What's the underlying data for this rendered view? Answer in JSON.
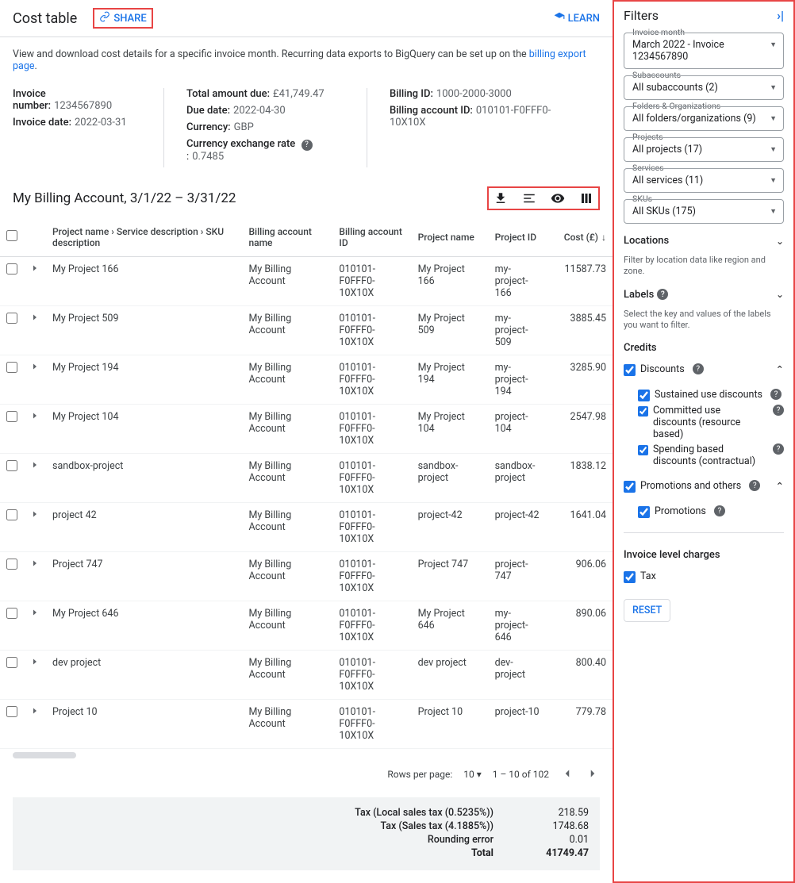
{
  "header": {
    "title": "Cost table",
    "share_label": "SHARE",
    "learn_label": "LEARN"
  },
  "description": {
    "text": "View and download cost details for a specific invoice month. Recurring data exports to BigQuery can be set up on the ",
    "link_text": "billing export page",
    "suffix": "."
  },
  "info": {
    "col1": [
      {
        "label": "Invoice number:",
        "value": "1234567890"
      },
      {
        "label": "Invoice date:",
        "value": "2022-03-31"
      }
    ],
    "col2": [
      {
        "label": "Total amount due:",
        "value": "£41,749.47"
      },
      {
        "label": "Due date:",
        "value": "2022-04-30"
      },
      {
        "label": "Currency:",
        "value": "GBP"
      },
      {
        "label": "Currency exchange rate",
        "value": "0.7485",
        "help": true
      }
    ],
    "col3": [
      {
        "label": "Billing ID:",
        "value": "1000-2000-3000"
      },
      {
        "label": "Billing account ID:",
        "value": "010101-F0FFF0-10X10X"
      }
    ]
  },
  "subtitle": "My Billing Account, 3/1/22 – 3/31/22",
  "columns": {
    "project_desc": "Project name › Service description › SKU description",
    "billing_acct_name": "Billing account name",
    "billing_acct_id": "Billing account ID",
    "project_name": "Project name",
    "project_id": "Project ID",
    "cost": "Cost (£)"
  },
  "rows": [
    {
      "name": "My Project 166",
      "acct": "My Billing Account",
      "acctid": "010101-F0FFF0-10X10X",
      "pname": "My Project 166",
      "pid": "my-project-166",
      "cost": "11587.73"
    },
    {
      "name": "My Project 509",
      "acct": "My Billing Account",
      "acctid": "010101-F0FFF0-10X10X",
      "pname": "My Project 509",
      "pid": "my-project-509",
      "cost": "3885.45"
    },
    {
      "name": "My Project 194",
      "acct": "My Billing Account",
      "acctid": "010101-F0FFF0-10X10X",
      "pname": "My Project 194",
      "pid": "my-project-194",
      "cost": "3285.90"
    },
    {
      "name": "My Project 104",
      "acct": "My Billing Account",
      "acctid": "010101-F0FFF0-10X10X",
      "pname": "My Project 104",
      "pid": "project-104",
      "cost": "2547.98"
    },
    {
      "name": "sandbox-project",
      "acct": "My Billing Account",
      "acctid": "010101-F0FFF0-10X10X",
      "pname": "sandbox-project",
      "pid": "sandbox-project",
      "cost": "1838.12"
    },
    {
      "name": "project 42",
      "acct": "My Billing Account",
      "acctid": "010101-F0FFF0-10X10X",
      "pname": "project-42",
      "pid": "project-42",
      "cost": "1641.04"
    },
    {
      "name": "Project 747",
      "acct": "My Billing Account",
      "acctid": "010101-F0FFF0-10X10X",
      "pname": "Project 747",
      "pid": "project-747",
      "cost": "906.06"
    },
    {
      "name": "My Project 646",
      "acct": "My Billing Account",
      "acctid": "010101-F0FFF0-10X10X",
      "pname": "My Project 646",
      "pid": "my-project-646",
      "cost": "890.06"
    },
    {
      "name": "dev project",
      "acct": "My Billing Account",
      "acctid": "010101-F0FFF0-10X10X",
      "pname": "dev project",
      "pid": "dev-project",
      "cost": "800.40"
    },
    {
      "name": "Project 10",
      "acct": "My Billing Account",
      "acctid": "010101-F0FFF0-10X10X",
      "pname": "Project 10",
      "pid": "project-10",
      "cost": "779.78"
    }
  ],
  "pager": {
    "rpp_label": "Rows per page:",
    "rpp_value": "10",
    "range": "1 – 10 of 102"
  },
  "summary": [
    {
      "label": "Tax (Local sales tax (0.5235%))",
      "value": "218.59"
    },
    {
      "label": "Tax (Sales tax (4.1885%))",
      "value": "1748.68"
    },
    {
      "label": "Rounding error",
      "value": "0.01"
    },
    {
      "label": "Total",
      "value": "41749.47",
      "total": true
    }
  ],
  "filters": {
    "title": "Filters",
    "invoice_month": {
      "label": "Invoice month",
      "value": "March 2022 - Invoice 1234567890"
    },
    "subaccounts": {
      "label": "Subaccounts",
      "value": "All subaccounts (2)"
    },
    "folders": {
      "label": "Folders & Organizations",
      "value": "All folders/organizations (9)"
    },
    "projects": {
      "label": "Projects",
      "value": "All projects (17)"
    },
    "services": {
      "label": "Services",
      "value": "All services (11)"
    },
    "skus": {
      "label": "SKUs",
      "value": "All SKUs (175)"
    },
    "locations": {
      "title": "Locations",
      "sub": "Filter by location data like region and zone."
    },
    "labels": {
      "title": "Labels",
      "sub": "Select the key and values of the labels you want to filter."
    },
    "credits_title": "Credits",
    "discounts": {
      "label": "Discounts",
      "children": [
        {
          "label": "Sustained use discounts",
          "help": true
        },
        {
          "label": "Committed use discounts (resource based)",
          "help": true
        },
        {
          "label": "Spending based discounts (contractual)",
          "help": true
        }
      ]
    },
    "promotions": {
      "label": "Promotions and others",
      "children": [
        {
          "label": "Promotions",
          "help": true
        }
      ]
    },
    "invoice_charges": {
      "title": "Invoice level charges",
      "tax_label": "Tax"
    },
    "reset": "RESET"
  }
}
